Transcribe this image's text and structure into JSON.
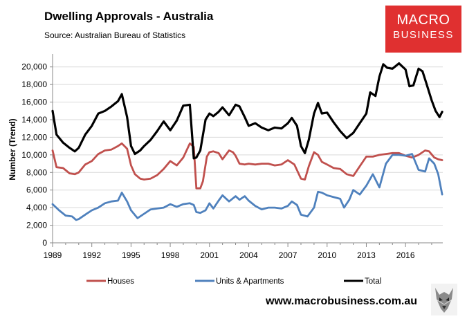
{
  "header": {
    "title": "Dwelling Approvals - Australia",
    "source": "Source:   Australian Bureau of Statistics"
  },
  "brand": {
    "line1": "MACRO",
    "line2": "BUSINESS",
    "color": "#e03030",
    "url": "www.macrobusiness.com.au",
    "mascot_icon": "wolf-logo-icon"
  },
  "chart_data": {
    "type": "line",
    "ylabel": "Number (Trend)",
    "xlabel": "",
    "ylim": [
      0,
      21000
    ],
    "xlim": [
      1989.0,
      2018.85
    ],
    "yticks": [
      "0",
      "2,000",
      "4,000",
      "6,000",
      "8,000",
      "10,000",
      "12,000",
      "14,000",
      "16,000",
      "18,000",
      "20,000"
    ],
    "xticks": [
      "1989",
      "1992",
      "1995",
      "1998",
      "2001",
      "2004",
      "2007",
      "2010",
      "2013",
      "2016"
    ],
    "grid": "horizontal",
    "legend": "bottom",
    "series": [
      {
        "name": "Houses",
        "color": "#c0504d",
        "x": [
          1989.0,
          1989.3,
          1989.8,
          1990.3,
          1990.7,
          1991.0,
          1991.5,
          1992.0,
          1992.5,
          1993.0,
          1993.5,
          1994.0,
          1994.3,
          1994.7,
          1995.0,
          1995.3,
          1995.7,
          1996.0,
          1996.5,
          1997.0,
          1997.5,
          1998.0,
          1998.5,
          1999.0,
          1999.5,
          1999.8,
          2000.0,
          2000.3,
          2000.5,
          2000.8,
          2001.0,
          2001.3,
          2001.7,
          2002.0,
          2002.5,
          2002.8,
          2003.0,
          2003.3,
          2003.7,
          2004.0,
          2004.5,
          2005.0,
          2005.5,
          2006.0,
          2006.5,
          2007.0,
          2007.5,
          2008.0,
          2008.3,
          2008.6,
          2009.0,
          2009.3,
          2009.6,
          2010.0,
          2010.5,
          2011.0,
          2011.5,
          2012.0,
          2012.5,
          2013.0,
          2013.5,
          2014.0,
          2014.5,
          2015.0,
          2015.5,
          2016.0,
          2016.5,
          2017.0,
          2017.5,
          2017.8,
          2018.2,
          2018.5,
          2018.8
        ],
        "values": [
          10500,
          8600,
          8500,
          7900,
          7800,
          8000,
          8900,
          9300,
          10100,
          10500,
          10600,
          11000,
          11300,
          10700,
          8800,
          7800,
          7300,
          7200,
          7300,
          7700,
          8400,
          9300,
          8800,
          9700,
          11300,
          10900,
          6200,
          6200,
          7000,
          9800,
          10300,
          10400,
          10200,
          9500,
          10500,
          10300,
          9900,
          9000,
          8900,
          9000,
          8900,
          9000,
          9000,
          8800,
          8900,
          9400,
          8900,
          7300,
          7200,
          8700,
          10300,
          10000,
          9200,
          8900,
          8500,
          8400,
          7800,
          7600,
          8700,
          9800,
          9800,
          10000,
          10100,
          10200,
          10200,
          9900,
          9700,
          10000,
          10500,
          10400,
          9700,
          9500,
          9400
        ]
      },
      {
        "name": "Units & Apartments",
        "color": "#4f81bd",
        "x": [
          1989.0,
          1989.5,
          1990.0,
          1990.5,
          1990.8,
          1991.0,
          1991.5,
          1992.0,
          1992.5,
          1993.0,
          1993.5,
          1994.0,
          1994.3,
          1994.7,
          1995.0,
          1995.5,
          1996.0,
          1996.5,
          1997.0,
          1997.5,
          1998.0,
          1998.5,
          1999.0,
          1999.5,
          1999.8,
          2000.0,
          2000.3,
          2000.7,
          2001.0,
          2001.3,
          2001.7,
          2002.0,
          2002.5,
          2003.0,
          2003.3,
          2003.7,
          2004.0,
          2004.5,
          2005.0,
          2005.5,
          2006.0,
          2006.5,
          2007.0,
          2007.3,
          2007.7,
          2008.0,
          2008.5,
          2009.0,
          2009.3,
          2009.6,
          2010.0,
          2010.5,
          2011.0,
          2011.3,
          2011.7,
          2012.0,
          2012.5,
          2013.0,
          2013.5,
          2014.0,
          2014.5,
          2015.0,
          2015.5,
          2016.0,
          2016.5,
          2017.0,
          2017.5,
          2017.8,
          2018.2,
          2018.5,
          2018.8
        ],
        "values": [
          4400,
          3700,
          3100,
          3000,
          2600,
          2700,
          3200,
          3700,
          4000,
          4500,
          4700,
          4800,
          5700,
          4700,
          3700,
          2800,
          3300,
          3800,
          3900,
          4000,
          4400,
          4100,
          4400,
          4500,
          4300,
          3500,
          3400,
          3700,
          4500,
          3900,
          4800,
          5400,
          4700,
          5300,
          4900,
          5300,
          4800,
          4200,
          3800,
          4000,
          4000,
          3900,
          4200,
          4700,
          4300,
          3200,
          3000,
          4000,
          5800,
          5700,
          5400,
          5200,
          5000,
          4000,
          4900,
          6000,
          5500,
          6500,
          7800,
          6300,
          9000,
          10000,
          10000,
          9900,
          10100,
          8300,
          8100,
          9600,
          9000,
          7800,
          5500
        ]
      },
      {
        "name": "Total",
        "color": "#000000",
        "x": [
          1989.0,
          1989.3,
          1989.8,
          1990.3,
          1990.7,
          1991.0,
          1991.5,
          1992.0,
          1992.5,
          1993.0,
          1993.5,
          1994.0,
          1994.3,
          1994.7,
          1995.0,
          1995.3,
          1995.7,
          1996.0,
          1996.5,
          1997.0,
          1997.5,
          1998.0,
          1998.5,
          1999.0,
          1999.5,
          1999.8,
          2000.0,
          2000.3,
          2000.7,
          2001.0,
          2001.3,
          2001.7,
          2002.0,
          2002.5,
          2002.8,
          2003.0,
          2003.3,
          2003.7,
          2004.0,
          2004.5,
          2005.0,
          2005.5,
          2006.0,
          2006.5,
          2007.0,
          2007.3,
          2007.7,
          2008.0,
          2008.3,
          2008.6,
          2009.0,
          2009.3,
          2009.6,
          2010.0,
          2010.5,
          2011.0,
          2011.5,
          2012.0,
          2012.5,
          2013.0,
          2013.3,
          2013.7,
          2014.0,
          2014.3,
          2014.6,
          2015.0,
          2015.5,
          2016.0,
          2016.3,
          2016.6,
          2017.0,
          2017.3,
          2017.6,
          2018.0,
          2018.3,
          2018.6,
          2018.8
        ],
        "values": [
          15000,
          12300,
          11400,
          10800,
          10400,
          10800,
          12300,
          13300,
          14700,
          15000,
          15500,
          16100,
          16900,
          14300,
          11000,
          10100,
          10500,
          11000,
          11700,
          12700,
          13800,
          12800,
          13900,
          15600,
          15700,
          9600,
          9700,
          10500,
          14000,
          14700,
          14400,
          14900,
          15400,
          14500,
          15200,
          15700,
          15500,
          14300,
          13300,
          13600,
          13100,
          12800,
          13100,
          13000,
          13600,
          14200,
          13300,
          11000,
          10200,
          11700,
          14700,
          15900,
          14700,
          14800,
          13700,
          12700,
          11900,
          12500,
          13600,
          14700,
          17100,
          16700,
          18900,
          20300,
          19900,
          19800,
          20400,
          19700,
          17800,
          17900,
          19800,
          19500,
          18100,
          16200,
          15000,
          14300,
          14900
        ]
      }
    ]
  }
}
